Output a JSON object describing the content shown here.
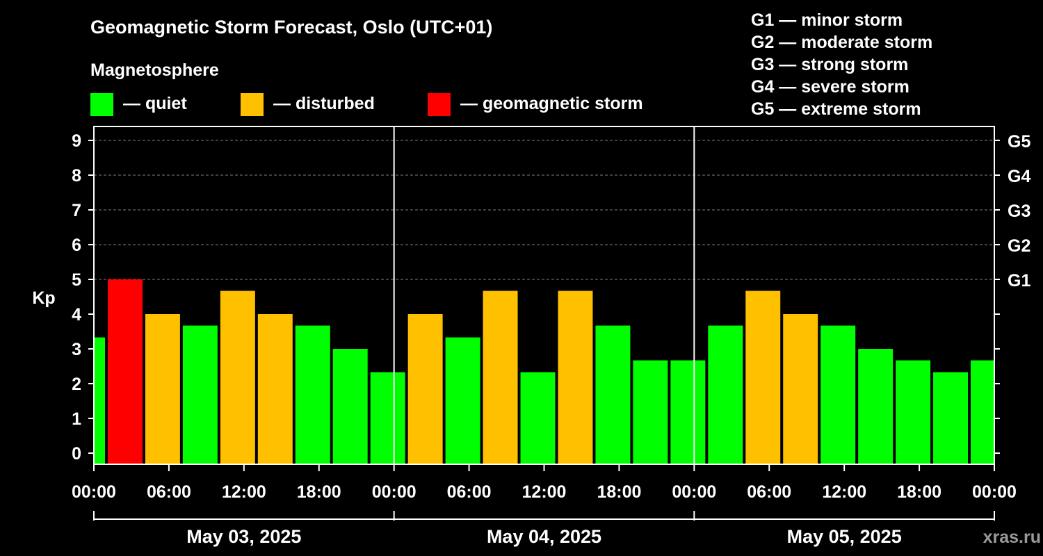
{
  "colors": {
    "background": "#000000",
    "quiet": "#00ff00",
    "disturbed": "#ffc000",
    "storm": "#ff0000",
    "axis": "#ffffff",
    "grid": "#808080",
    "watermark": "#9a9a9a"
  },
  "chart_data": {
    "type": "bar",
    "title": "Geomagnetic Storm Forecast, Oslo (UTC+01)",
    "ylabel": "Kp",
    "ylim": [
      0,
      9
    ],
    "yticks": [
      "0",
      "1",
      "2",
      "3",
      "4",
      "5",
      "6",
      "7",
      "8",
      "9"
    ],
    "grid_levels": [
      5,
      6,
      7,
      8,
      9
    ],
    "storm_ticks": [
      {
        "level": 5,
        "label": "G1"
      },
      {
        "level": 6,
        "label": "G2"
      },
      {
        "level": 7,
        "label": "G3"
      },
      {
        "level": 8,
        "label": "G4"
      },
      {
        "level": 9,
        "label": "G5"
      }
    ],
    "legend": {
      "title": "Magnetosphere",
      "items": [
        {
          "status": "quiet",
          "label": "— quiet"
        },
        {
          "status": "disturbed",
          "label": "— disturbed"
        },
        {
          "status": "storm",
          "label": "— geomagnetic storm"
        }
      ]
    },
    "storm_scale": [
      {
        "label": "G1 — minor storm"
      },
      {
        "label": "G2 — moderate storm"
      },
      {
        "label": "G3 — strong storm"
      },
      {
        "label": "G4 — severe storm"
      },
      {
        "label": "G5 — extreme storm"
      }
    ],
    "x_range_hours": [
      0,
      72
    ],
    "hour_ticks": [
      0,
      6,
      12,
      18,
      24,
      30,
      36,
      42,
      48,
      54,
      60,
      66,
      72
    ],
    "hour_tick_labels": [
      "00:00",
      "06:00",
      "12:00",
      "18:00",
      "00:00",
      "06:00",
      "12:00",
      "18:00",
      "00:00",
      "06:00",
      "12:00",
      "18:00",
      "00:00"
    ],
    "days": [
      "May 03, 2025",
      "May 04, 2025",
      "May 05, 2025"
    ],
    "bars": [
      {
        "start": 0,
        "end": 1,
        "value": 3.33,
        "status": "quiet"
      },
      {
        "start": 1,
        "end": 4,
        "value": 5.0,
        "status": "storm"
      },
      {
        "start": 4,
        "end": 7,
        "value": 4.0,
        "status": "disturbed"
      },
      {
        "start": 7,
        "end": 10,
        "value": 3.67,
        "status": "quiet"
      },
      {
        "start": 10,
        "end": 13,
        "value": 4.67,
        "status": "disturbed"
      },
      {
        "start": 13,
        "end": 16,
        "value": 4.0,
        "status": "disturbed"
      },
      {
        "start": 16,
        "end": 19,
        "value": 3.67,
        "status": "quiet"
      },
      {
        "start": 19,
        "end": 22,
        "value": 3.0,
        "status": "quiet"
      },
      {
        "start": 22,
        "end": 25,
        "value": 2.33,
        "status": "quiet"
      },
      {
        "start": 25,
        "end": 28,
        "value": 4.0,
        "status": "disturbed"
      },
      {
        "start": 28,
        "end": 31,
        "value": 3.33,
        "status": "quiet"
      },
      {
        "start": 31,
        "end": 34,
        "value": 4.67,
        "status": "disturbed"
      },
      {
        "start": 34,
        "end": 37,
        "value": 2.33,
        "status": "quiet"
      },
      {
        "start": 37,
        "end": 40,
        "value": 4.67,
        "status": "disturbed"
      },
      {
        "start": 40,
        "end": 43,
        "value": 3.67,
        "status": "quiet"
      },
      {
        "start": 43,
        "end": 46,
        "value": 2.67,
        "status": "quiet"
      },
      {
        "start": 46,
        "end": 49,
        "value": 2.67,
        "status": "quiet"
      },
      {
        "start": 49,
        "end": 52,
        "value": 3.67,
        "status": "quiet"
      },
      {
        "start": 52,
        "end": 55,
        "value": 4.67,
        "status": "disturbed"
      },
      {
        "start": 55,
        "end": 58,
        "value": 4.0,
        "status": "disturbed"
      },
      {
        "start": 58,
        "end": 61,
        "value": 3.67,
        "status": "quiet"
      },
      {
        "start": 61,
        "end": 64,
        "value": 3.0,
        "status": "quiet"
      },
      {
        "start": 64,
        "end": 67,
        "value": 2.67,
        "status": "quiet"
      },
      {
        "start": 67,
        "end": 70,
        "value": 2.33,
        "status": "quiet"
      },
      {
        "start": 70,
        "end": 72,
        "value": 2.67,
        "status": "quiet"
      }
    ],
    "watermark": "xras.ru"
  }
}
